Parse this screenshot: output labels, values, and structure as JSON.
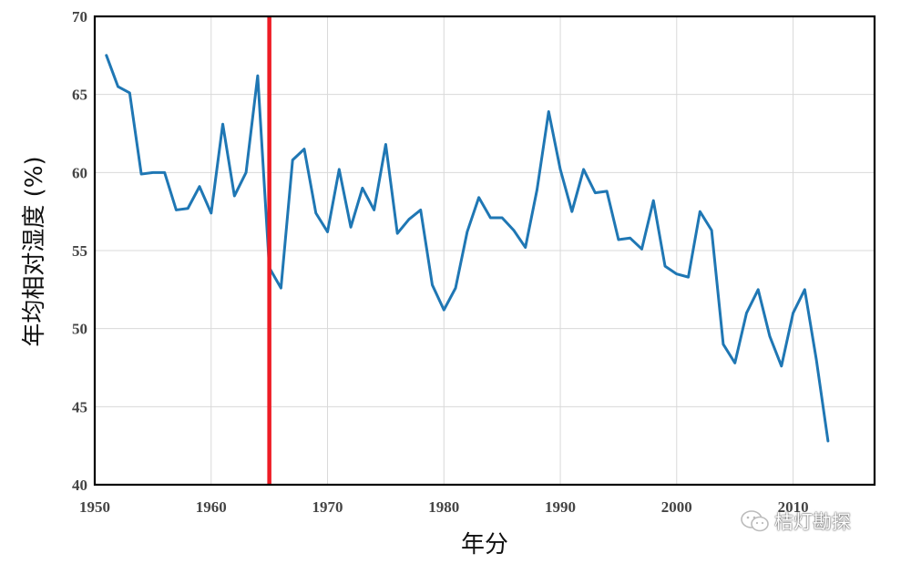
{
  "chart_data": {
    "type": "line",
    "title": "",
    "xlabel": "年分",
    "ylabel": "年均相对湿度 (%)",
    "xlim": [
      1950,
      2017
    ],
    "ylim": [
      40,
      70
    ],
    "xticks": [
      1950,
      1960,
      1970,
      1980,
      1990,
      2000,
      2010
    ],
    "yticks": [
      40,
      45,
      50,
      55,
      60,
      65,
      70
    ],
    "grid": true,
    "series": [
      {
        "name": "",
        "color": "#1f77b4",
        "x": [
          1951,
          1952,
          1953,
          1954,
          1955,
          1956,
          1957,
          1958,
          1959,
          1960,
          1961,
          1962,
          1963,
          1964,
          1965,
          1966,
          1967,
          1968,
          1969,
          1970,
          1971,
          1972,
          1973,
          1974,
          1975,
          1976,
          1977,
          1978,
          1979,
          1980,
          1981,
          1982,
          1983,
          1984,
          1985,
          1986,
          1987,
          1988,
          1989,
          1990,
          1991,
          1992,
          1993,
          1994,
          1995,
          1996,
          1997,
          1998,
          1999,
          2000,
          2001,
          2002,
          2003,
          2004,
          2005,
          2006,
          2007,
          2008,
          2009,
          2010,
          2011,
          2012,
          2013
        ],
        "values": [
          67.5,
          65.5,
          65.1,
          59.9,
          60.0,
          60.0,
          57.6,
          57.7,
          59.1,
          57.4,
          63.1,
          58.5,
          60.0,
          66.2,
          53.9,
          52.6,
          60.8,
          61.5,
          57.4,
          56.2,
          60.2,
          56.5,
          59.0,
          57.6,
          61.8,
          56.1,
          57.0,
          57.6,
          52.8,
          51.2,
          52.6,
          56.2,
          58.4,
          57.1,
          57.1,
          56.3,
          55.2,
          58.9,
          63.9,
          60.2,
          57.5,
          60.2,
          58.7,
          58.8,
          55.7,
          55.8,
          55.1,
          58.2,
          54.0,
          53.5,
          53.3,
          57.5,
          56.3,
          49.0,
          47.8,
          51.0,
          52.5,
          49.5,
          47.6,
          51.0,
          52.5,
          48.0,
          42.8
        ]
      }
    ],
    "annotations": [
      {
        "type": "vertical-line",
        "x": 1965,
        "color": "#ee1c25"
      }
    ]
  },
  "watermark": {
    "text": "桔灯勘探",
    "icon": "wechat-icon"
  }
}
